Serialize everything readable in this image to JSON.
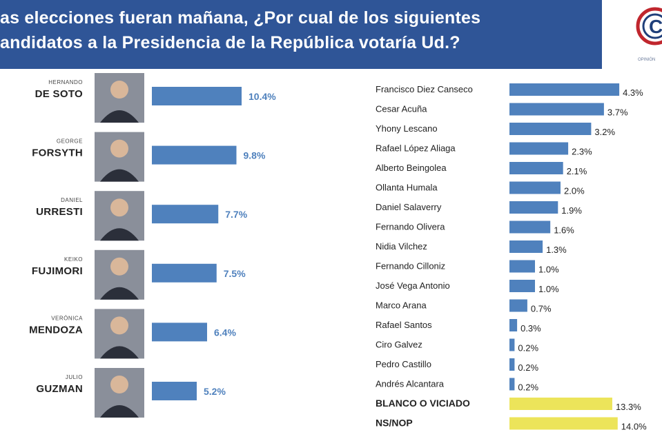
{
  "header": {
    "title_line1": "as elecciones fueran mañana, ¿Por cual de los siguientes",
    "title_line2": "andidatos a la Presidencia de la República votaría Ud.?",
    "logo_text": "C",
    "logo_subtext": "OPINIÓN"
  },
  "colors": {
    "banner": "#2f5597",
    "bar_blue": "#4f81bd",
    "bar_yellow": "#ece45a",
    "logo_red": "#c0262d",
    "logo_blue": "#1f3f7a"
  },
  "chart_data": [
    {
      "type": "bar",
      "orientation": "horizontal",
      "unit": "%",
      "categories": [
        {
          "first": "HERNANDO",
          "last": "DE SOTO"
        },
        {
          "first": "GEORGE",
          "last": "FORSYTH"
        },
        {
          "first": "DANIEL",
          "last": "URRESTI"
        },
        {
          "first": "KEIKO",
          "last": "FUJIMORI"
        },
        {
          "first": "VERÓNICA",
          "last": "MENDOZA"
        },
        {
          "first": "JULIO",
          "last": "GUZMAN"
        }
      ],
      "values": [
        10.4,
        9.8,
        7.7,
        7.5,
        6.4,
        5.2
      ],
      "labels": [
        "10.4%",
        "9.8%",
        "7.7%",
        "7.5%",
        "6.4%",
        "5.2%"
      ]
    },
    {
      "type": "bar",
      "orientation": "horizontal",
      "unit": "%",
      "categories": [
        "Francisco Diez Canseco",
        "Cesar Acuña",
        "Yhony Lescano",
        "Rafael López Aliaga",
        "Alberto Beingolea",
        "Ollanta Humala",
        "Daniel Salaverry",
        "Fernando Olivera",
        "Nidia Vilchez",
        "Fernando Cilloniz",
        "José Vega Antonio",
        "Marco Arana",
        "Rafael Santos",
        "Ciro Galvez",
        "Pedro Castillo",
        "Andrés Alcantara",
        "BLANCO O VICIADO",
        "NS/NOP"
      ],
      "values": [
        4.3,
        3.7,
        3.2,
        2.3,
        2.1,
        2.0,
        1.9,
        1.6,
        1.3,
        1.0,
        1.0,
        0.7,
        0.3,
        0.2,
        0.2,
        0.2,
        13.3,
        14.0
      ],
      "labels": [
        "4.3%",
        "3.7%",
        "3.2%",
        "2.3%",
        "2.1%",
        "2.0%",
        "1.9%",
        "1.6%",
        "1.3%",
        "1.0%",
        "1.0%",
        "0.7%",
        "0.3%",
        "0.2%",
        "0.2%",
        "0.2%",
        "13.3%",
        "14.0%"
      ],
      "highlighted": [
        "BLANCO O VICIADO",
        "NS/NOP"
      ]
    }
  ]
}
